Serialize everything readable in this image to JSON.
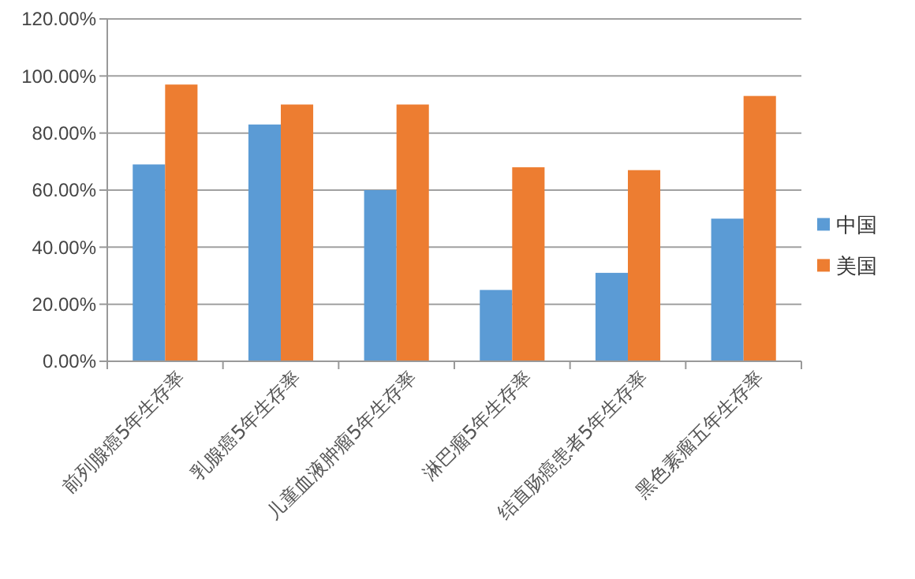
{
  "chart_data": {
    "type": "bar",
    "categories": [
      "前列腺癌5年生存率",
      "乳腺癌5年生存率",
      "儿童血液肿瘤5年生存率",
      "淋巴瘤5年生存率",
      "结直肠癌患者5年生存率",
      "黑色素瘤五年生存率"
    ],
    "series": [
      {
        "name": "中国",
        "color": "#5b9bd5",
        "values": [
          69,
          83,
          60,
          25,
          31,
          50
        ]
      },
      {
        "name": "美国",
        "color": "#ed7d31",
        "values": [
          97,
          90,
          90,
          68,
          67,
          93
        ]
      }
    ],
    "ylim": [
      0,
      120
    ],
    "yticks": [
      {
        "value": 0,
        "label": "0.00%"
      },
      {
        "value": 20,
        "label": "20.00%"
      },
      {
        "value": 40,
        "label": "40.00%"
      },
      {
        "value": 60,
        "label": "60.00%"
      },
      {
        "value": 80,
        "label": "80.00%"
      },
      {
        "value": 100,
        "label": "100.00%"
      },
      {
        "value": 120,
        "label": "120.00%"
      }
    ],
    "grid": "y",
    "legend": "right"
  }
}
